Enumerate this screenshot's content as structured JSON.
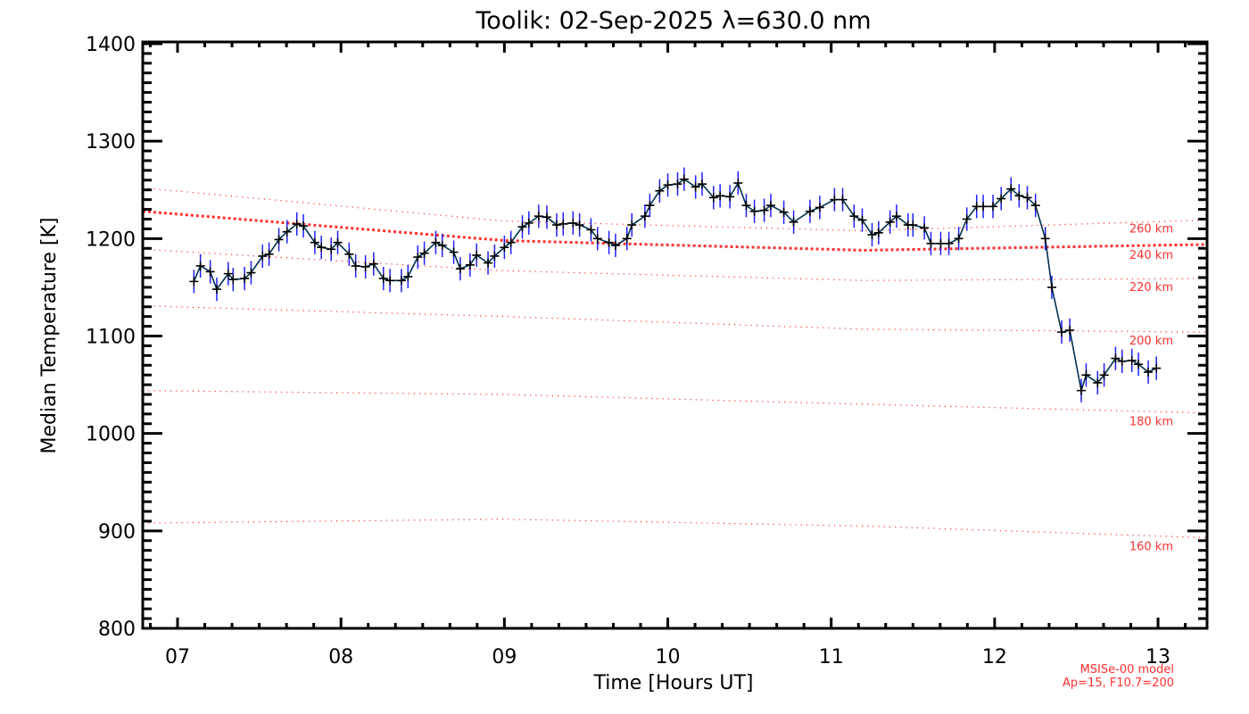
{
  "chart_data": {
    "type": "line",
    "title": "Toolik: 02-Sep-2025 λ=630.0 nm",
    "xlabel": "Time [Hours UT]",
    "ylabel": "Median Temperature [K]",
    "xlim": [
      6.787,
      13.3
    ],
    "ylim": [
      800,
      1400
    ],
    "x_ticks": [
      7,
      8,
      9,
      10,
      11,
      12,
      13
    ],
    "x_tick_labels": [
      "07",
      "08",
      "09",
      "10",
      "11",
      "12",
      "13"
    ],
    "y_ticks": [
      800,
      900,
      1000,
      1100,
      1200,
      1300,
      1400
    ],
    "y_tick_labels": [
      "800",
      "900",
      "1000",
      "1100",
      "1200",
      "1300",
      "1400"
    ],
    "grid": false,
    "series": [
      {
        "name": "Median Temperature",
        "color": "#003050",
        "marker_color": "#000000",
        "error_color": "#2020ff",
        "error_k": 12,
        "x": [
          7.1,
          7.14,
          7.2,
          7.24,
          7.31,
          7.34,
          7.41,
          7.45,
          7.52,
          7.56,
          7.62,
          7.67,
          7.73,
          7.77,
          7.84,
          7.88,
          7.94,
          7.98,
          8.05,
          8.09,
          8.15,
          8.2,
          8.26,
          8.3,
          8.37,
          8.41,
          8.47,
          8.51,
          8.58,
          8.62,
          8.69,
          8.73,
          8.79,
          8.83,
          8.9,
          8.94,
          9.0,
          9.04,
          9.11,
          9.15,
          9.21,
          9.26,
          9.32,
          9.36,
          9.42,
          9.46,
          9.53,
          9.57,
          9.64,
          9.68,
          9.75,
          9.78,
          9.86,
          9.89,
          9.95,
          10.0,
          10.06,
          10.1,
          10.17,
          10.21,
          10.28,
          10.32,
          10.38,
          10.43,
          10.48,
          10.53,
          10.59,
          10.63,
          10.71,
          10.77,
          10.87,
          10.93,
          11.02,
          11.07,
          11.14,
          11.19,
          11.25,
          11.29,
          11.36,
          11.4,
          11.47,
          11.5,
          11.57,
          11.61,
          11.67,
          11.72,
          11.78,
          11.83,
          11.89,
          11.93,
          11.99,
          12.04,
          12.1,
          12.15,
          12.2,
          12.25,
          12.31,
          12.35,
          12.41,
          12.46,
          12.53,
          12.56,
          12.63,
          12.67,
          12.74,
          12.78,
          12.84,
          12.88,
          12.94,
          12.99
        ],
        "y": [
          1156,
          1172,
          1166,
          1148,
          1164,
          1158,
          1159,
          1165,
          1182,
          1184,
          1199,
          1207,
          1215,
          1213,
          1196,
          1191,
          1189,
          1196,
          1184,
          1172,
          1171,
          1174,
          1159,
          1157,
          1157,
          1161,
          1181,
          1185,
          1196,
          1193,
          1186,
          1169,
          1173,
          1183,
          1175,
          1182,
          1191,
          1196,
          1212,
          1216,
          1223,
          1222,
          1214,
          1215,
          1216,
          1214,
          1209,
          1200,
          1196,
          1193,
          1200,
          1214,
          1223,
          1234,
          1249,
          1255,
          1256,
          1261,
          1253,
          1256,
          1242,
          1244,
          1243,
          1257,
          1234,
          1228,
          1229,
          1234,
          1227,
          1217,
          1228,
          1232,
          1240,
          1240,
          1223,
          1219,
          1204,
          1206,
          1217,
          1223,
          1214,
          1214,
          1211,
          1195,
          1195,
          1195,
          1200,
          1220,
          1233,
          1233,
          1233,
          1241,
          1251,
          1244,
          1242,
          1234,
          1200,
          1150,
          1104,
          1106,
          1044,
          1060,
          1052,
          1060,
          1077,
          1074,
          1075,
          1071,
          1063,
          1067
        ]
      }
    ],
    "model_lines": {
      "color": "#ff3030",
      "x": [
        6.787,
        9.0,
        11.2,
        13.3
      ],
      "lines": [
        {
          "label": "260 km",
          "y": [
            1252,
            1218,
            1208,
            1219
          ],
          "thick": false
        },
        {
          "label": "240 km",
          "y": [
            1228,
            1198,
            1188,
            1194
          ],
          "thick": true
        },
        {
          "label": "220 km",
          "y": [
            1189,
            1167,
            1157,
            1159
          ],
          "thick": false
        },
        {
          "label": "200 km",
          "y": [
            1131,
            1120,
            1107,
            1104
          ],
          "thick": false
        },
        {
          "label": "180 km",
          "y": [
            1044,
            1040,
            1030,
            1021
          ],
          "thick": false
        },
        {
          "label": "160 km",
          "y": [
            908,
            912,
            905,
            893
          ],
          "thick": false
        }
      ]
    },
    "annotations": [
      "MSISe-00 model",
      "Ap=15, F10.7=200"
    ]
  }
}
